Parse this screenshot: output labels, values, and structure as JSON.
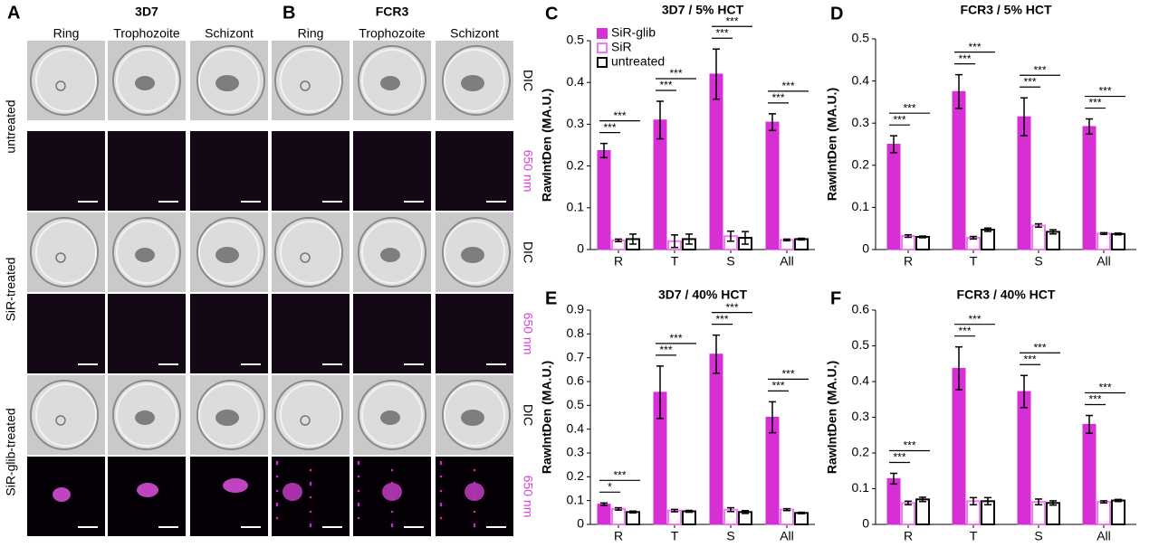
{
  "figure": {
    "panel_a": {
      "letter": "A",
      "title": "3D7",
      "columns": [
        "Ring",
        "Trophozoite",
        "Schizont"
      ]
    },
    "panel_b": {
      "letter": "B",
      "title": "FCR3",
      "columns": [
        "Ring",
        "Trophozoite",
        "Schizont"
      ]
    },
    "row_labels": [
      "untreated",
      "SiR-treated",
      "SiR-glib-treated"
    ],
    "channel_labels": [
      "DIC",
      "650 nm"
    ]
  },
  "chart_data": [
    {
      "type": "bar",
      "panel": "C",
      "title": "3D7 / 5% HCT",
      "ylabel": "RawIntDen (MA.U.)",
      "categories": [
        "R",
        "T",
        "S",
        "All"
      ],
      "ylim": [
        0,
        0.5
      ],
      "yticks": [
        0,
        0.1,
        0.2,
        0.3,
        0.4,
        0.5
      ],
      "legend": "upper left",
      "series": [
        {
          "name": "SiR-glib",
          "color": "#d62fd6",
          "style": "filled",
          "values": [
            0.237,
            0.31,
            0.42,
            0.305
          ],
          "errors": [
            0.017,
            0.045,
            0.06,
            0.02
          ]
        },
        {
          "name": "SiR",
          "color": "#f07af0",
          "style": "outline",
          "values": [
            0.022,
            0.02,
            0.032,
            0.023
          ],
          "errors": [
            0.003,
            0.015,
            0.012,
            0.002
          ]
        },
        {
          "name": "untreated",
          "color": "#000000",
          "style": "outline",
          "values": [
            0.025,
            0.025,
            0.028,
            0.025
          ],
          "errors": [
            0.012,
            0.012,
            0.015,
            0.002
          ]
        }
      ],
      "significance": [
        [
          "***",
          "***"
        ],
        [
          "***",
          "***"
        ],
        [
          "***",
          "***"
        ],
        [
          "***",
          "***"
        ]
      ]
    },
    {
      "type": "bar",
      "panel": "D",
      "title": "FCR3 / 5% HCT",
      "ylabel": "RawIntDen (MA.U.)",
      "categories": [
        "R",
        "T",
        "S",
        "All"
      ],
      "ylim": [
        0,
        0.5
      ],
      "yticks": [
        0,
        0.1,
        0.2,
        0.3,
        0.4,
        0.5
      ],
      "series": [
        {
          "color": "#d62fd6",
          "style": "filled",
          "values": [
            0.25,
            0.375,
            0.315,
            0.292
          ],
          "errors": [
            0.02,
            0.04,
            0.045,
            0.018
          ]
        },
        {
          "color": "#f07af0",
          "style": "outline",
          "values": [
            0.032,
            0.028,
            0.057,
            0.038
          ],
          "errors": [
            0.003,
            0.003,
            0.004,
            0.002
          ]
        },
        {
          "color": "#000000",
          "style": "outline",
          "values": [
            0.03,
            0.047,
            0.042,
            0.037
          ],
          "errors": [
            0.002,
            0.004,
            0.005,
            0.002
          ]
        }
      ],
      "significance": [
        [
          "***",
          "***"
        ],
        [
          "***",
          "***"
        ],
        [
          "***",
          "***"
        ],
        [
          "***",
          "***"
        ]
      ]
    },
    {
      "type": "bar",
      "panel": "E",
      "title": "3D7 / 40% HCT",
      "ylabel": "RawIntDen (MA.U.)",
      "categories": [
        "R",
        "T",
        "S",
        "All"
      ],
      "ylim": [
        0,
        0.9
      ],
      "yticks": [
        0,
        0.1,
        0.2,
        0.3,
        0.4,
        0.5,
        0.6,
        0.7,
        0.8,
        0.9
      ],
      "series": [
        {
          "color": "#d62fd6",
          "style": "filled",
          "values": [
            0.085,
            0.555,
            0.715,
            0.45
          ],
          "errors": [
            0.005,
            0.11,
            0.08,
            0.065
          ]
        },
        {
          "color": "#f07af0",
          "style": "outline",
          "values": [
            0.065,
            0.058,
            0.062,
            0.062
          ],
          "errors": [
            0.005,
            0.005,
            0.008,
            0.004
          ]
        },
        {
          "color": "#000000",
          "style": "outline",
          "values": [
            0.052,
            0.055,
            0.052,
            0.048
          ],
          "errors": [
            0.004,
            0.004,
            0.006,
            0.003
          ]
        }
      ],
      "significance": [
        [
          "*",
          "***"
        ],
        [
          "***",
          "***"
        ],
        [
          "***",
          "***"
        ],
        [
          "***",
          "***"
        ]
      ]
    },
    {
      "type": "bar",
      "panel": "F",
      "title": "FCR3 / 40% HCT",
      "ylabel": "RawIntDen (MA.U.)",
      "categories": [
        "R",
        "T",
        "S",
        "All"
      ],
      "ylim": [
        0,
        0.6
      ],
      "yticks": [
        0,
        0.1,
        0.2,
        0.3,
        0.4,
        0.5,
        0.6
      ],
      "series": [
        {
          "color": "#d62fd6",
          "style": "filled",
          "values": [
            0.128,
            0.437,
            0.372,
            0.28
          ],
          "errors": [
            0.015,
            0.06,
            0.045,
            0.025
          ]
        },
        {
          "color": "#f07af0",
          "style": "outline",
          "values": [
            0.06,
            0.065,
            0.063,
            0.063
          ],
          "errors": [
            0.005,
            0.01,
            0.008,
            0.003
          ]
        },
        {
          "color": "#000000",
          "style": "outline",
          "values": [
            0.07,
            0.065,
            0.06,
            0.067
          ],
          "errors": [
            0.006,
            0.01,
            0.006,
            0.003
          ]
        }
      ],
      "significance": [
        [
          "***",
          "***"
        ],
        [
          "***",
          "***"
        ],
        [
          "***",
          "***"
        ],
        [
          "***",
          "***"
        ]
      ]
    }
  ]
}
